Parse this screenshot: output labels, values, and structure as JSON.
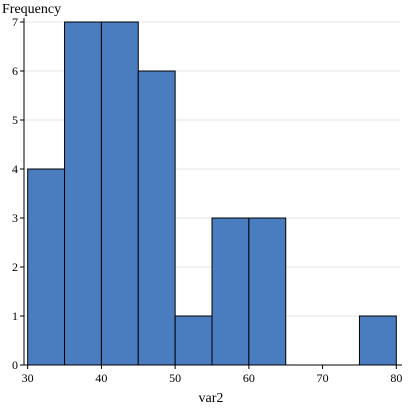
{
  "chart_data": {
    "type": "bar",
    "xlabel": "var2",
    "ylabel": "Frequency",
    "x_ticks": [
      30,
      40,
      50,
      60,
      70,
      80
    ],
    "y_ticks": [
      0,
      1,
      2,
      3,
      4,
      5,
      6,
      7
    ],
    "xlim": [
      29.5,
      80.5
    ],
    "ylim": [
      0,
      7
    ],
    "grid": {
      "y": true,
      "x": false
    },
    "bins": [
      {
        "start": 30,
        "end": 35,
        "value": 4
      },
      {
        "start": 35,
        "end": 40,
        "value": 7
      },
      {
        "start": 40,
        "end": 45,
        "value": 7
      },
      {
        "start": 45,
        "end": 50,
        "value": 6
      },
      {
        "start": 50,
        "end": 55,
        "value": 1
      },
      {
        "start": 55,
        "end": 60,
        "value": 3
      },
      {
        "start": 60,
        "end": 65,
        "value": 3
      },
      {
        "start": 75,
        "end": 80,
        "value": 1
      }
    ],
    "bar_color": "#4a7cc0",
    "bar_edge_color": "#000000",
    "grid_color": "#e6e6e6"
  }
}
